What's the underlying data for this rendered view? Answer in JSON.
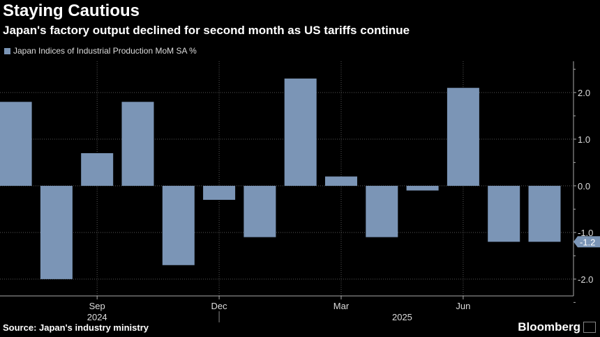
{
  "title": "Staying Cautious",
  "subtitle": "Japan's factory output declined for second month as US tariffs continue",
  "source": "Source: Japan's industry ministry",
  "brand": "Bloomberg",
  "chart_data": {
    "type": "bar",
    "legend": [
      "Japan Indices of Industrial Production MoM SA %"
    ],
    "categories": [
      "Jul 2024",
      "Aug 2024",
      "Sep 2024",
      "Oct 2024",
      "Nov 2024",
      "Dec 2024",
      "Jan 2025",
      "Feb 2025",
      "Mar 2025",
      "Apr 2025",
      "May 2025",
      "Jun 2025",
      "Jul 2025",
      "Aug 2025"
    ],
    "series": [
      {
        "name": "Japan Indices of Industrial Production MoM SA %",
        "values": [
          1.8,
          -2.0,
          0.7,
          1.8,
          -1.7,
          -0.3,
          -1.1,
          2.3,
          0.2,
          -1.1,
          -0.1,
          2.1,
          -1.2,
          -1.2
        ]
      }
    ],
    "ylim": [
      -2.36,
      2.67
    ],
    "yticks": [
      "2.0",
      "1.0",
      "0.0",
      "-1.0",
      "-2.0"
    ],
    "ytick_values": [
      2,
      1,
      0,
      -1,
      -2
    ],
    "xtick_labels": [
      {
        "label": "Sep",
        "category": "Sep 2024"
      },
      {
        "label": "Dec",
        "category": "Dec 2024"
      },
      {
        "label": "Mar",
        "category": "Mar 2025"
      },
      {
        "label": "Jun",
        "category": "Jun 2025"
      }
    ],
    "year_labels": [
      {
        "label": "2024",
        "category": "Sep 2024"
      },
      {
        "label": "2025",
        "category": "Apr 2025"
      }
    ],
    "last_value_label": "-1.2",
    "bar_color": "#7b95b6",
    "grid": true,
    "legend_position": "top-left"
  }
}
